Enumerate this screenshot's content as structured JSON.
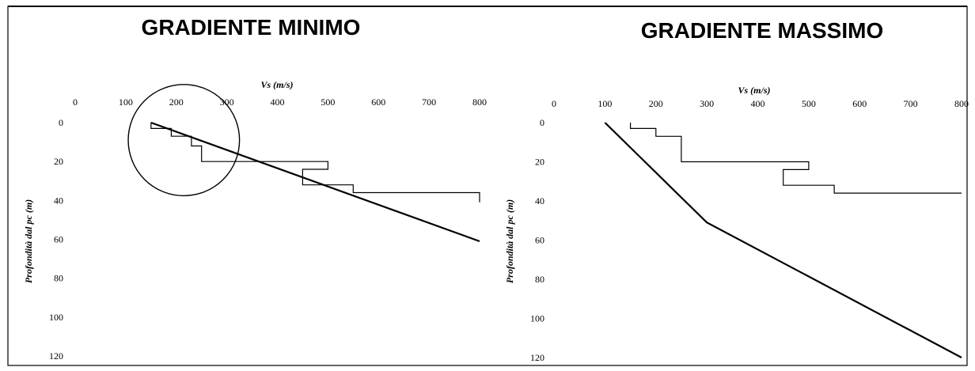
{
  "chart_data": [
    {
      "type": "line",
      "title": "GRADIENTE MINIMO",
      "xlabel": "Vs (m/s)",
      "ylabel": "Profondità dal pc (m)",
      "xlim": [
        0,
        800
      ],
      "ylim": [
        120,
        0
      ],
      "x_ticks": [
        "0",
        "100",
        "200",
        "300",
        "400",
        "500",
        "600",
        "700",
        "800"
      ],
      "y_ticks": [
        "0",
        "20",
        "40",
        "60",
        "80",
        "100",
        "120"
      ],
      "x_axis_position": "top",
      "grid": false,
      "series": [
        {
          "style": "step",
          "points": [
            [
              150,
              0
            ],
            [
              150,
              3
            ],
            [
              190,
              3
            ],
            [
              190,
              7
            ],
            [
              230,
              7
            ],
            [
              230,
              12
            ],
            [
              250,
              12
            ],
            [
              250,
              20
            ],
            [
              500,
              20
            ],
            [
              500,
              24
            ],
            [
              450,
              24
            ],
            [
              450,
              32
            ],
            [
              550,
              32
            ],
            [
              550,
              36
            ],
            [
              800,
              36
            ],
            [
              800,
              41
            ]
          ]
        },
        {
          "style": "line",
          "points": [
            [
              150,
              0
            ],
            [
              800,
              61
            ]
          ]
        }
      ],
      "annotations": [
        {
          "type": "circle",
          "center": [
            215,
            9
          ],
          "radius_ms": 110
        }
      ]
    },
    {
      "type": "line",
      "title": "GRADIENTE MASSIMO",
      "xlabel": "Vs (m/s)",
      "ylabel": "Profondità dal pc (m)",
      "xlim": [
        0,
        800
      ],
      "ylim": [
        120,
        0
      ],
      "x_ticks": [
        "0",
        "100",
        "200",
        "300",
        "400",
        "500",
        "600",
        "700",
        "800"
      ],
      "y_ticks": [
        "0",
        "20",
        "40",
        "60",
        "80",
        "100",
        "120"
      ],
      "x_axis_position": "top",
      "grid": false,
      "series": [
        {
          "style": "step",
          "points": [
            [
              150,
              0
            ],
            [
              150,
              3
            ],
            [
              200,
              3
            ],
            [
              200,
              7
            ],
            [
              250,
              7
            ],
            [
              250,
              20
            ],
            [
              500,
              20
            ],
            [
              500,
              24
            ],
            [
              450,
              24
            ],
            [
              450,
              32
            ],
            [
              550,
              32
            ],
            [
              550,
              36
            ],
            [
              800,
              36
            ]
          ]
        },
        {
          "style": "line",
          "points": [
            [
              100,
              0
            ],
            [
              300,
              51
            ],
            [
              800,
              120
            ]
          ]
        }
      ]
    }
  ]
}
